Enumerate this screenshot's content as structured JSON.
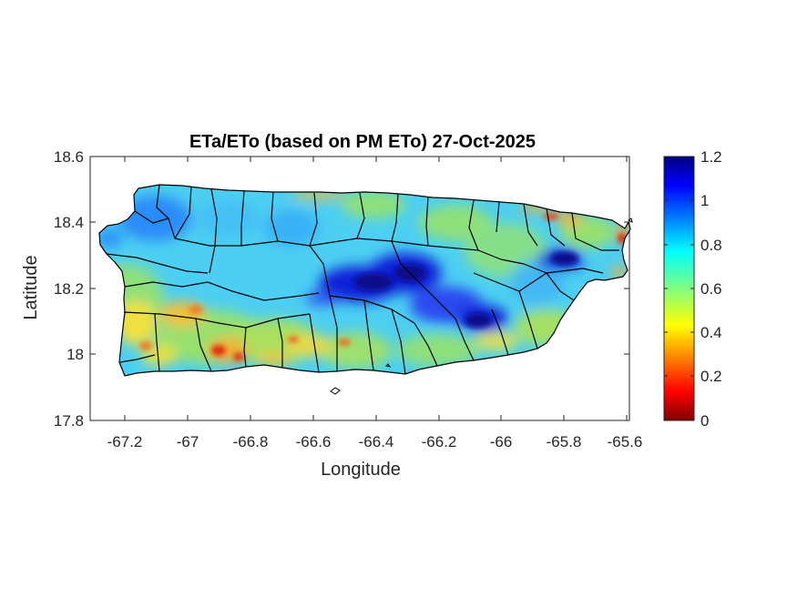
{
  "title": "ETa/ETo (based on PM ETo) 27-Oct-2025",
  "xlabel": "Longitude",
  "ylabel": "Latitude",
  "x_ticks": [
    "-67.2",
    "-67",
    "-66.8",
    "-66.6",
    "-66.4",
    "-66.2",
    "-66",
    "-65.8",
    "-65.6"
  ],
  "y_ticks": [
    "18.6",
    "18.4",
    "18.2",
    "18",
    "17.8"
  ],
  "colorbar_ticks": [
    "1.2",
    "1",
    "0.8",
    "0.6",
    "0.4",
    "0.2",
    "0"
  ],
  "map": {
    "xlim": [
      -67.3,
      -65.58
    ],
    "ylim": [
      17.8,
      18.6
    ],
    "colormap": "jet",
    "color_range": [
      0,
      1.2
    ],
    "colors": {
      "dark_blue": "#0a0a8c",
      "blue": "#1e3cff",
      "cyan": "#33ccee",
      "green": "#6edc8c",
      "yellow": "#f0e632",
      "orange": "#f5a020",
      "red": "#dc2010",
      "border": "#000000"
    }
  }
}
